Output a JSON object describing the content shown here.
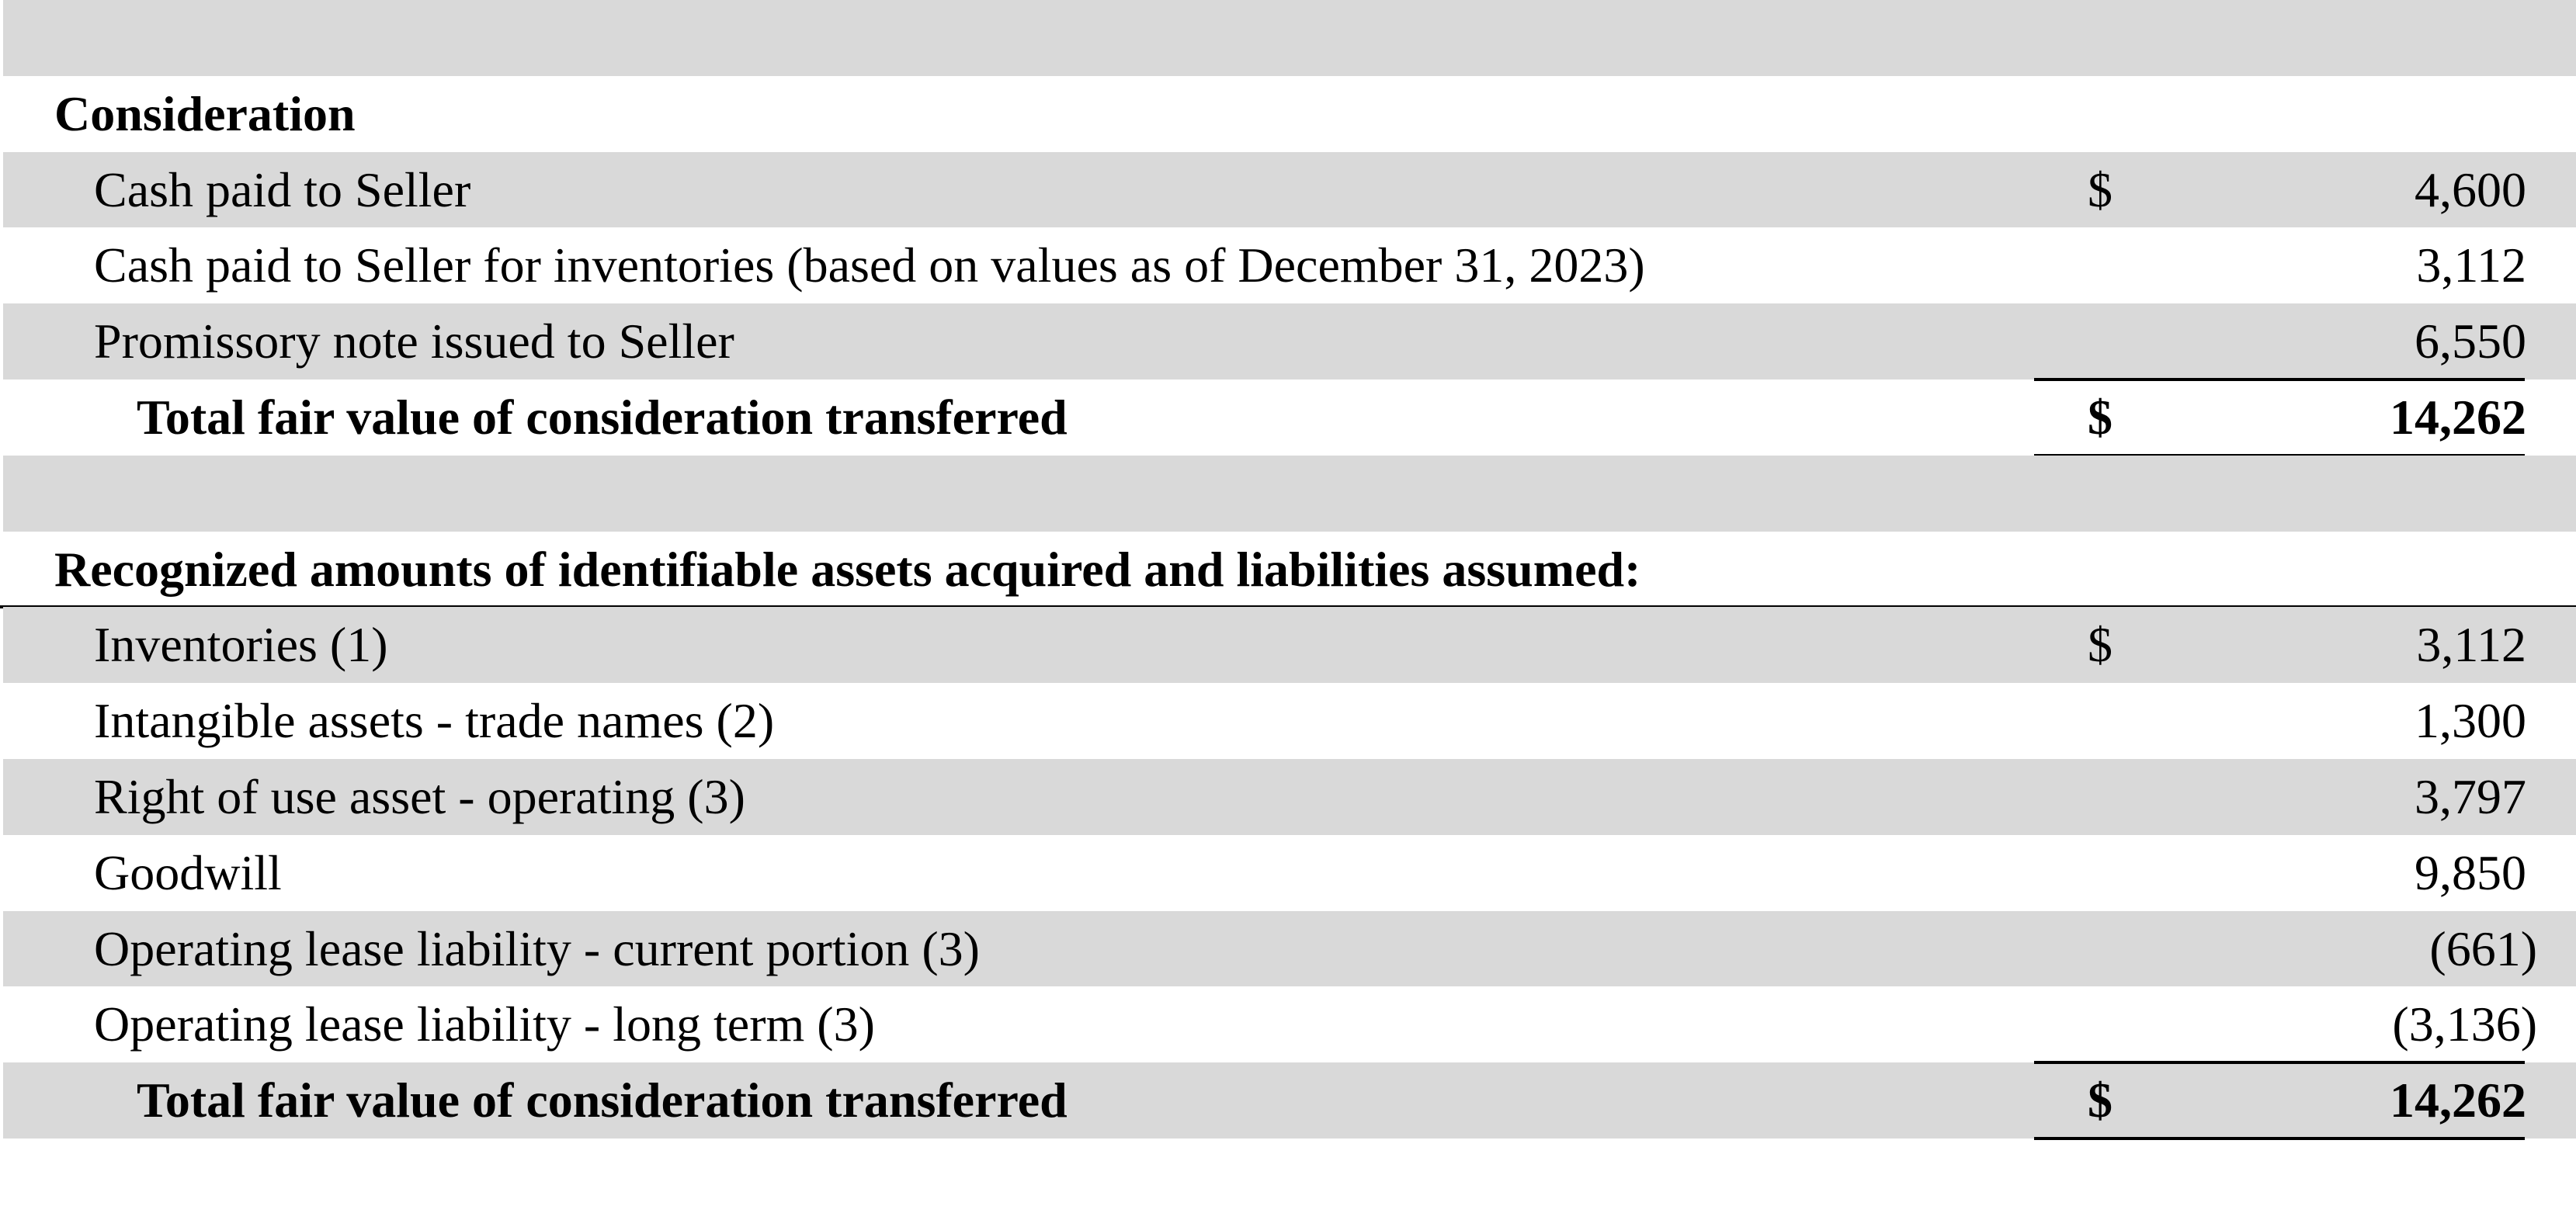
{
  "table": {
    "sections": [
      {
        "heading": "Consideration",
        "rows": [
          {
            "label": "Cash paid to Seller",
            "currency": "$",
            "amount": "4,600"
          },
          {
            "label": "Cash paid to Seller for inventories (based on values as of December 31, 2023)",
            "amount": "3,112"
          },
          {
            "label": "Promissory note issued to Seller",
            "amount": "6,550"
          }
        ],
        "total": {
          "label": "Total fair value of consideration transferred",
          "currency": "$",
          "amount": "14,262"
        }
      },
      {
        "heading": "Recognized amounts of identifiable assets acquired and liabilities assumed:",
        "rows": [
          {
            "label": "Inventories (1)",
            "currency": "$",
            "amount": "3,112"
          },
          {
            "label": "Intangible assets - trade names (2)",
            "amount": "1,300"
          },
          {
            "label": "Right of use asset - operating (3)",
            "amount": "3,797"
          },
          {
            "label": "Goodwill",
            "amount": "9,850"
          },
          {
            "label": "Operating lease liability - current portion (3)",
            "amount": "(661)"
          },
          {
            "label": "Operating lease liability - long term (3)",
            "amount": "(3,136)"
          }
        ],
        "total": {
          "label": "Total fair value of consideration transferred",
          "currency": "$",
          "amount": "14,262"
        }
      }
    ]
  }
}
